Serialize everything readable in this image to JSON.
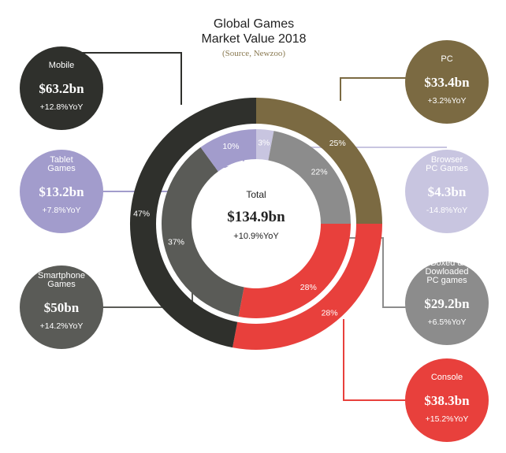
{
  "chart_data": {
    "type": "pie",
    "title_lines": [
      "Global Games",
      "Market Value 2018"
    ],
    "source": "(Source, Newzoo)",
    "total": {
      "label": "Total",
      "value": "$134.9bn",
      "yoy": "+10.9%YoY"
    },
    "outer_ring": [
      {
        "name": "Mobile",
        "value_label": "$63.2bn",
        "yoy": "+12.8%YoY",
        "percent": 47,
        "percent_label": "47%",
        "color": "#2f302c"
      },
      {
        "name": "PC",
        "value_label": "$33.4bn",
        "yoy": "+3.2%YoY",
        "percent": 25,
        "percent_label": "25%",
        "color": "#7b6a42"
      },
      {
        "name": "Console",
        "value_label": "$38.3bn",
        "yoy": "+15.2%YoY",
        "percent": 28,
        "percent_label": "28%",
        "color": "#e8403c"
      }
    ],
    "inner_ring": [
      {
        "name": "Tablet Games",
        "value_label": "$13.2bn",
        "yoy": "+7.8%YoY",
        "percent": 10,
        "percent_label": "10%",
        "color": "#a29ccc"
      },
      {
        "name": "Browser PC Games",
        "value_label": "$4.3bn",
        "yoy": "-14.8%YoY",
        "percent": 3,
        "percent_label": "3%",
        "color": "#c8c5e0"
      },
      {
        "name": "Boxed & Dowloaded PC games",
        "value_label": "$29.2bn",
        "yoy": "+6.5%YoY",
        "percent": 22,
        "percent_label": "22%",
        "color": "#8c8c8c"
      },
      {
        "name": "Console",
        "value_label": "$38.3bn",
        "yoy": "+15.2%YoY",
        "percent": 28,
        "percent_label": "28%",
        "color": "#e8403c"
      },
      {
        "name": "Smartphone Games",
        "value_label": "$50bn",
        "yoy": "+14.2%YoY",
        "percent": 37,
        "percent_label": "37%",
        "color": "#5a5b57"
      }
    ],
    "callouts": [
      {
        "ref": "Mobile",
        "name_lines": [
          "Mobile"
        ],
        "value": "$63.2bn",
        "yoy": "+12.8%YoY",
        "color": "#2f302c"
      },
      {
        "ref": "Tablet Games",
        "name_lines": [
          "Tablet",
          "Games"
        ],
        "value": "$13.2bn",
        "yoy": "+7.8%YoY",
        "color": "#a29ccc"
      },
      {
        "ref": "Smartphone Games",
        "name_lines": [
          "Smartphone",
          "Games"
        ],
        "value": "$50bn",
        "yoy": "+14.2%YoY",
        "color": "#5a5b57"
      },
      {
        "ref": "PC",
        "name_lines": [
          "PC"
        ],
        "value": "$33.4bn",
        "yoy": "+3.2%YoY",
        "color": "#7b6a42"
      },
      {
        "ref": "Browser PC Games",
        "name_lines": [
          "Browser",
          "PC Games"
        ],
        "value": "$4.3bn",
        "yoy": "-14.8%YoY",
        "color": "#c8c5e0"
      },
      {
        "ref": "Boxed & Dowloaded PC games",
        "name_lines": [
          "Boxed &",
          "Dowloaded",
          "PC games"
        ],
        "value": "$29.2bn",
        "yoy": "+6.5%YoY",
        "color": "#8c8c8c"
      },
      {
        "ref": "Console",
        "name_lines": [
          "Console"
        ],
        "value": "$38.3bn",
        "yoy": "+15.2%YoY",
        "color": "#e8403c"
      }
    ]
  }
}
